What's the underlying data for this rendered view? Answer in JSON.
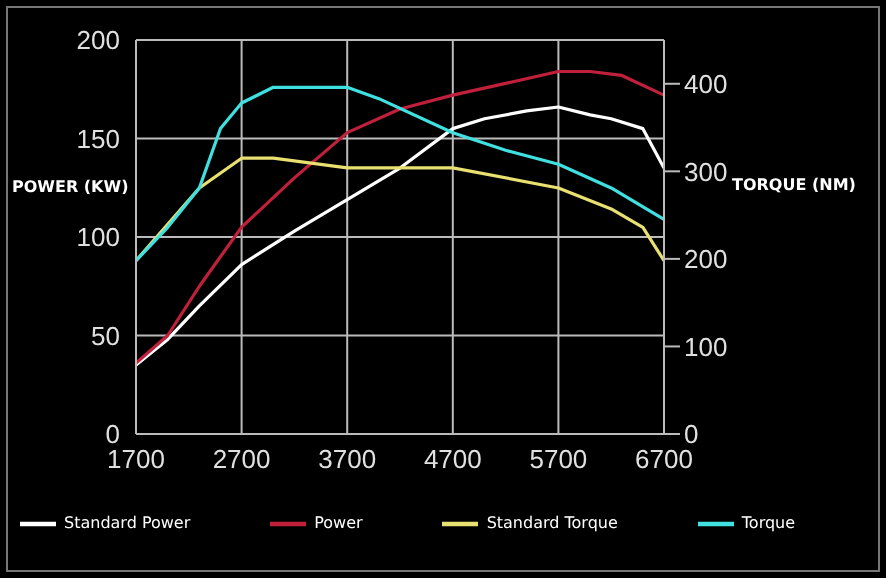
{
  "chart_data": {
    "type": "line",
    "xlim": [
      1700,
      6700
    ],
    "xticks": [
      1700,
      2700,
      3700,
      4700,
      5700,
      6700
    ],
    "ylim": [
      0,
      200
    ],
    "yticks": [
      0,
      50,
      100,
      150,
      200
    ],
    "y2lim": [
      0,
      450
    ],
    "y2ticks": [
      0,
      100,
      200,
      300,
      400
    ],
    "ylabel": "POWER (KW)",
    "y2label": "TORQUE (NM)",
    "grid": true,
    "legend": "bottom",
    "marker": "none",
    "line_style": "solid",
    "series": [
      {
        "name": "Standard Power",
        "color": "#ffffff",
        "x": [
          1700,
          2000,
          2300,
          2700,
          3200,
          3700,
          4200,
          4700,
          5000,
          5400,
          5700,
          6000,
          6200,
          6500,
          6700
        ],
        "values": [
          35,
          48,
          65,
          86,
          103,
          119,
          135,
          155,
          160,
          164,
          166,
          162,
          160,
          155,
          135
        ]
      },
      {
        "name": "Power",
        "color": "#c0203a",
        "x": [
          1700,
          2000,
          2300,
          2700,
          3200,
          3700,
          4200,
          4700,
          5200,
          5700,
          6000,
          6300,
          6700
        ],
        "values": [
          36,
          50,
          75,
          105,
          130,
          153,
          165,
          172,
          178,
          184,
          184,
          182,
          172
        ]
      },
      {
        "name": "Standard Torque",
        "color": "#e8e070",
        "axis": "y2",
        "x": [
          1700,
          2300,
          2700,
          3000,
          3700,
          4700,
          5700,
          6200,
          6500,
          6700
        ],
        "values": [
          198,
          281,
          315,
          315,
          304,
          304,
          281,
          257,
          236,
          198
        ]
      },
      {
        "name": "Torque",
        "color": "#40e0e0",
        "axis": "y2",
        "x": [
          1700,
          2000,
          2300,
          2500,
          2700,
          3000,
          3700,
          4000,
          4700,
          5200,
          5700,
          6200,
          6700
        ],
        "values": [
          198,
          236,
          281,
          349,
          378,
          396,
          396,
          383,
          344,
          324,
          308,
          281,
          245
        ]
      }
    ]
  }
}
